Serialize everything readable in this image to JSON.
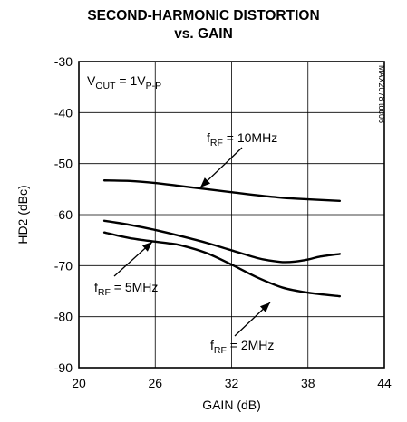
{
  "chart_data": {
    "type": "line",
    "title_line1": "SECOND-HARMONIC DISTORTION",
    "title_line2": "vs. GAIN",
    "xlabel": "GAIN (dB)",
    "ylabel": "HD2 (dBc)",
    "xlim": [
      20,
      44
    ],
    "ylim": [
      -90,
      -30
    ],
    "xticks": [
      20,
      26,
      32,
      38,
      44
    ],
    "yticks": [
      -30,
      -40,
      -50,
      -60,
      -70,
      -80,
      -90
    ],
    "xtick_labels": [
      "20",
      "26",
      "32",
      "38",
      "44"
    ],
    "ytick_labels": [
      "-30",
      "-40",
      "-50",
      "-60",
      "-70",
      "-80",
      "-90"
    ],
    "grid": true,
    "condition": {
      "main": "V",
      "sub1": "OUT",
      "mid": " = 1V",
      "sub2": "P-P"
    },
    "part_number": "MAX2078 toc06",
    "series": [
      {
        "label_main": "f",
        "label_sub": "RF",
        "label_rest": " = 10MHz",
        "x": [
          22,
          24,
          26,
          28,
          30,
          32,
          34,
          36,
          38,
          40.5
        ],
        "y": [
          -53.3,
          -53.4,
          -53.8,
          -54.4,
          -55.0,
          -55.6,
          -56.2,
          -56.7,
          -57.0,
          -57.3
        ]
      },
      {
        "label_main": "f",
        "label_sub": "RF",
        "label_rest": " = 5MHz",
        "x": [
          22,
          24,
          26,
          28,
          30,
          32,
          34,
          35,
          36,
          37,
          38,
          39,
          40.5
        ],
        "y": [
          -61.2,
          -62.0,
          -63.0,
          -64.2,
          -65.5,
          -67.0,
          -68.5,
          -69.0,
          -69.3,
          -69.2,
          -68.8,
          -68.2,
          -67.7
        ]
      },
      {
        "label_main": "f",
        "label_sub": "RF",
        "label_rest": " = 2MHz",
        "x": [
          22,
          24,
          26,
          27,
          28,
          30,
          32,
          34,
          36,
          38,
          40.5
        ],
        "y": [
          -63.5,
          -64.6,
          -65.3,
          -65.6,
          -66.0,
          -67.5,
          -69.8,
          -72.3,
          -74.3,
          -75.3,
          -76.0
        ]
      }
    ]
  }
}
